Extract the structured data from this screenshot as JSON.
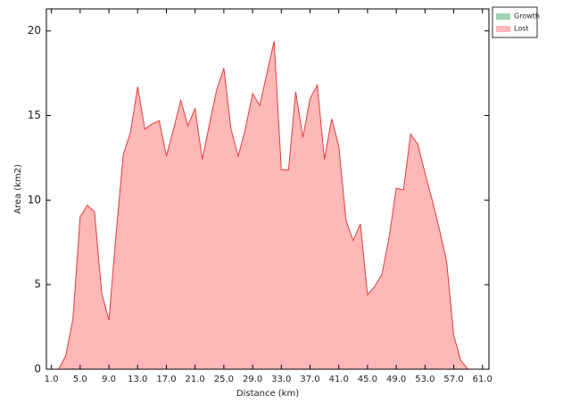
{
  "chart_data": {
    "type": "area",
    "xlabel": "Distance (km)",
    "ylabel": "Area (km2)",
    "x": [
      1,
      2,
      3,
      4,
      5,
      6,
      7,
      8,
      9,
      10,
      11,
      12,
      13,
      14,
      15,
      16,
      17,
      18,
      19,
      20,
      21,
      22,
      23,
      24,
      25,
      26,
      27,
      28,
      29,
      30,
      31,
      32,
      33,
      34,
      35,
      36,
      37,
      38,
      39,
      40,
      41,
      42,
      43,
      44,
      45,
      46,
      47,
      48,
      49,
      50,
      51,
      52,
      53,
      54,
      55,
      56,
      57,
      58,
      59,
      60
    ],
    "series": [
      {
        "name": "Growth",
        "color": "#9fd4b0",
        "line_color": "#4c9a6a",
        "values": [
          0,
          0,
          0,
          0,
          0,
          0,
          0,
          0,
          0,
          0,
          0,
          0,
          0,
          0,
          0,
          0,
          0,
          0,
          0,
          0,
          0,
          0,
          0,
          0,
          0,
          0,
          0,
          0,
          0,
          0,
          0,
          0,
          0,
          0,
          0,
          0,
          0,
          0,
          0,
          0,
          0,
          0,
          0,
          0,
          0,
          0,
          0,
          0,
          0,
          0,
          0,
          0,
          0,
          0,
          0,
          0,
          0,
          0,
          0,
          0
        ]
      },
      {
        "name": "Lost",
        "color": "#ffb8b8",
        "line_color": "#e03c3c",
        "values": [
          0,
          0,
          0.8,
          3,
          9,
          9.7,
          9.3,
          4.5,
          2.9,
          8,
          12.7,
          14,
          16.7,
          14.2,
          14.5,
          14.7,
          12.6,
          14.2,
          15.9,
          14.4,
          15.4,
          12.4,
          14.5,
          16.5,
          17.8,
          14.2,
          12.6,
          14.2,
          16.3,
          15.6,
          17.5,
          19.4,
          11.8,
          11.8,
          16.4,
          13.7,
          16,
          16.8,
          12.4,
          14.8,
          13.2,
          8.8,
          7.6,
          8.6,
          4.4,
          4.9,
          5.6,
          7.8,
          10.7,
          10.6,
          13.9,
          13.3,
          11.6,
          10,
          8.3,
          6.4,
          2,
          0.5,
          0,
          0
        ]
      }
    ],
    "xlim": [
      0.3,
      61.9
    ],
    "ylim": [
      0,
      21.3
    ],
    "xticks": [
      {
        "value": 1,
        "label": "1.0"
      },
      {
        "value": 5,
        "label": "5.0"
      },
      {
        "value": 9,
        "label": "9.0"
      },
      {
        "value": 13,
        "label": "13.0"
      },
      {
        "value": 17,
        "label": "17.0"
      },
      {
        "value": 21,
        "label": "21.0"
      },
      {
        "value": 25,
        "label": "25.0"
      },
      {
        "value": 29,
        "label": "29.0"
      },
      {
        "value": 33,
        "label": "33.0"
      },
      {
        "value": 37,
        "label": "37.0"
      },
      {
        "value": 41,
        "label": "41.0"
      },
      {
        "value": 45,
        "label": "45.0"
      },
      {
        "value": 49,
        "label": "49.0"
      },
      {
        "value": 53,
        "label": "53.0"
      },
      {
        "value": 57,
        "label": "57.0"
      },
      {
        "value": 61,
        "label": "61.0"
      }
    ],
    "yticks": [
      0,
      5,
      10,
      15,
      20
    ],
    "legend": "upper right outside"
  }
}
